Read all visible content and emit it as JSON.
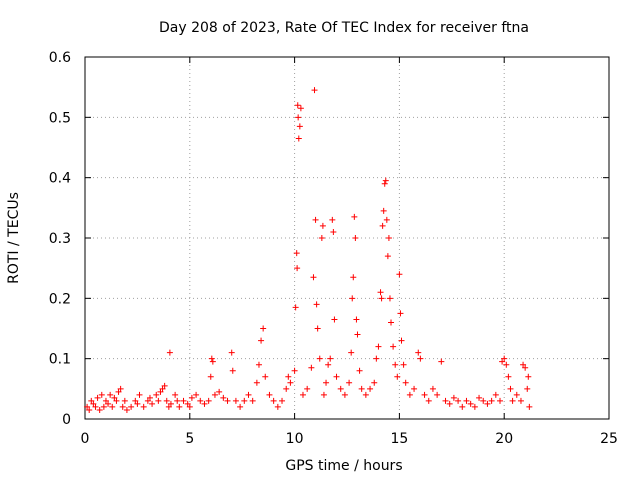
{
  "chart_data": {
    "type": "scatter",
    "title": "Day 208 of 2023, Rate Of TEC Index for receiver ftna",
    "xlabel": "GPS time / hours",
    "ylabel": "ROTI / TECUs",
    "xlim": [
      0,
      25
    ],
    "ylim": [
      0,
      0.6
    ],
    "xticks": [
      "0",
      "5",
      "10",
      "15",
      "20",
      "25"
    ],
    "yticks": [
      "0",
      "0.1",
      "0.2",
      "0.3",
      "0.4",
      "0.5",
      "0.6"
    ],
    "grid": true,
    "marker_color": "#ff0000",
    "marker": "plus",
    "points": [
      [
        0.1,
        0.02
      ],
      [
        0.2,
        0.015
      ],
      [
        0.3,
        0.03
      ],
      [
        0.4,
        0.025
      ],
      [
        0.5,
        0.02
      ],
      [
        0.6,
        0.035
      ],
      [
        0.7,
        0.015
      ],
      [
        0.8,
        0.04
      ],
      [
        0.9,
        0.02
      ],
      [
        1.0,
        0.03
      ],
      [
        1.1,
        0.025
      ],
      [
        1.2,
        0.04
      ],
      [
        1.3,
        0.02
      ],
      [
        1.4,
        0.035
      ],
      [
        1.5,
        0.03
      ],
      [
        1.6,
        0.045
      ],
      [
        1.7,
        0.05
      ],
      [
        1.8,
        0.02
      ],
      [
        1.9,
        0.03
      ],
      [
        2.0,
        0.015
      ],
      [
        2.2,
        0.02
      ],
      [
        2.4,
        0.03
      ],
      [
        2.5,
        0.025
      ],
      [
        2.6,
        0.04
      ],
      [
        2.8,
        0.02
      ],
      [
        3.0,
        0.03
      ],
      [
        3.1,
        0.035
      ],
      [
        3.2,
        0.025
      ],
      [
        3.4,
        0.04
      ],
      [
        3.5,
        0.03
      ],
      [
        3.6,
        0.045
      ],
      [
        3.7,
        0.05
      ],
      [
        3.8,
        0.055
      ],
      [
        3.9,
        0.03
      ],
      [
        4.0,
        0.02
      ],
      [
        4.05,
        0.11
      ],
      [
        4.1,
        0.025
      ],
      [
        4.3,
        0.04
      ],
      [
        4.4,
        0.03
      ],
      [
        4.5,
        0.02
      ],
      [
        4.7,
        0.03
      ],
      [
        4.9,
        0.025
      ],
      [
        5.0,
        0.02
      ],
      [
        5.1,
        0.035
      ],
      [
        5.3,
        0.04
      ],
      [
        5.5,
        0.03
      ],
      [
        5.7,
        0.025
      ],
      [
        5.9,
        0.03
      ],
      [
        6.0,
        0.07
      ],
      [
        6.05,
        0.1
      ],
      [
        6.1,
        0.095
      ],
      [
        6.2,
        0.04
      ],
      [
        6.4,
        0.045
      ],
      [
        6.6,
        0.035
      ],
      [
        6.8,
        0.03
      ],
      [
        7.0,
        0.11
      ],
      [
        7.05,
        0.08
      ],
      [
        7.2,
        0.03
      ],
      [
        7.4,
        0.02
      ],
      [
        7.6,
        0.03
      ],
      [
        7.8,
        0.04
      ],
      [
        8.0,
        0.03
      ],
      [
        8.2,
        0.06
      ],
      [
        8.3,
        0.09
      ],
      [
        8.4,
        0.13
      ],
      [
        8.5,
        0.15
      ],
      [
        8.6,
        0.07
      ],
      [
        8.8,
        0.04
      ],
      [
        9.0,
        0.03
      ],
      [
        9.2,
        0.02
      ],
      [
        9.4,
        0.03
      ],
      [
        9.6,
        0.05
      ],
      [
        9.7,
        0.07
      ],
      [
        9.8,
        0.06
      ],
      [
        10.0,
        0.08
      ],
      [
        10.05,
        0.185
      ],
      [
        10.1,
        0.275
      ],
      [
        10.12,
        0.25
      ],
      [
        10.15,
        0.52
      ],
      [
        10.17,
        0.5
      ],
      [
        10.2,
        0.465
      ],
      [
        10.25,
        0.485
      ],
      [
        10.3,
        0.515
      ],
      [
        10.4,
        0.04
      ],
      [
        10.6,
        0.05
      ],
      [
        10.8,
        0.085
      ],
      [
        10.9,
        0.235
      ],
      [
        10.95,
        0.545
      ],
      [
        11.0,
        0.33
      ],
      [
        11.05,
        0.19
      ],
      [
        11.1,
        0.15
      ],
      [
        11.2,
        0.1
      ],
      [
        11.3,
        0.3
      ],
      [
        11.35,
        0.32
      ],
      [
        11.4,
        0.04
      ],
      [
        11.5,
        0.06
      ],
      [
        11.6,
        0.09
      ],
      [
        11.7,
        0.1
      ],
      [
        11.8,
        0.33
      ],
      [
        11.85,
        0.31
      ],
      [
        11.9,
        0.165
      ],
      [
        12.0,
        0.07
      ],
      [
        12.2,
        0.05
      ],
      [
        12.4,
        0.04
      ],
      [
        12.6,
        0.06
      ],
      [
        12.7,
        0.11
      ],
      [
        12.75,
        0.2
      ],
      [
        12.8,
        0.235
      ],
      [
        12.85,
        0.335
      ],
      [
        12.9,
        0.3
      ],
      [
        12.95,
        0.165
      ],
      [
        13.0,
        0.14
      ],
      [
        13.1,
        0.08
      ],
      [
        13.2,
        0.05
      ],
      [
        13.4,
        0.04
      ],
      [
        13.6,
        0.05
      ],
      [
        13.8,
        0.06
      ],
      [
        13.9,
        0.1
      ],
      [
        14.0,
        0.12
      ],
      [
        14.1,
        0.21
      ],
      [
        14.15,
        0.2
      ],
      [
        14.2,
        0.32
      ],
      [
        14.25,
        0.345
      ],
      [
        14.3,
        0.39
      ],
      [
        14.35,
        0.395
      ],
      [
        14.4,
        0.33
      ],
      [
        14.45,
        0.27
      ],
      [
        14.5,
        0.3
      ],
      [
        14.55,
        0.2
      ],
      [
        14.6,
        0.16
      ],
      [
        14.7,
        0.12
      ],
      [
        14.8,
        0.09
      ],
      [
        14.9,
        0.07
      ],
      [
        15.0,
        0.24
      ],
      [
        15.05,
        0.175
      ],
      [
        15.1,
        0.13
      ],
      [
        15.2,
        0.09
      ],
      [
        15.3,
        0.06
      ],
      [
        15.5,
        0.04
      ],
      [
        15.7,
        0.05
      ],
      [
        15.9,
        0.11
      ],
      [
        16.0,
        0.1
      ],
      [
        16.2,
        0.04
      ],
      [
        16.4,
        0.03
      ],
      [
        16.6,
        0.05
      ],
      [
        16.8,
        0.04
      ],
      [
        17.0,
        0.095
      ],
      [
        17.2,
        0.03
      ],
      [
        17.4,
        0.025
      ],
      [
        17.6,
        0.035
      ],
      [
        17.8,
        0.03
      ],
      [
        18.0,
        0.02
      ],
      [
        18.2,
        0.03
      ],
      [
        18.4,
        0.025
      ],
      [
        18.6,
        0.02
      ],
      [
        18.8,
        0.035
      ],
      [
        19.0,
        0.03
      ],
      [
        19.2,
        0.025
      ],
      [
        19.4,
        0.03
      ],
      [
        19.6,
        0.04
      ],
      [
        19.8,
        0.03
      ],
      [
        19.9,
        0.095
      ],
      [
        20.0,
        0.1
      ],
      [
        20.1,
        0.09
      ],
      [
        20.2,
        0.07
      ],
      [
        20.3,
        0.05
      ],
      [
        20.4,
        0.03
      ],
      [
        20.6,
        0.04
      ],
      [
        20.8,
        0.03
      ],
      [
        20.9,
        0.09
      ],
      [
        21.0,
        0.085
      ],
      [
        21.1,
        0.05
      ],
      [
        21.15,
        0.07
      ],
      [
        21.2,
        0.02
      ]
    ]
  }
}
